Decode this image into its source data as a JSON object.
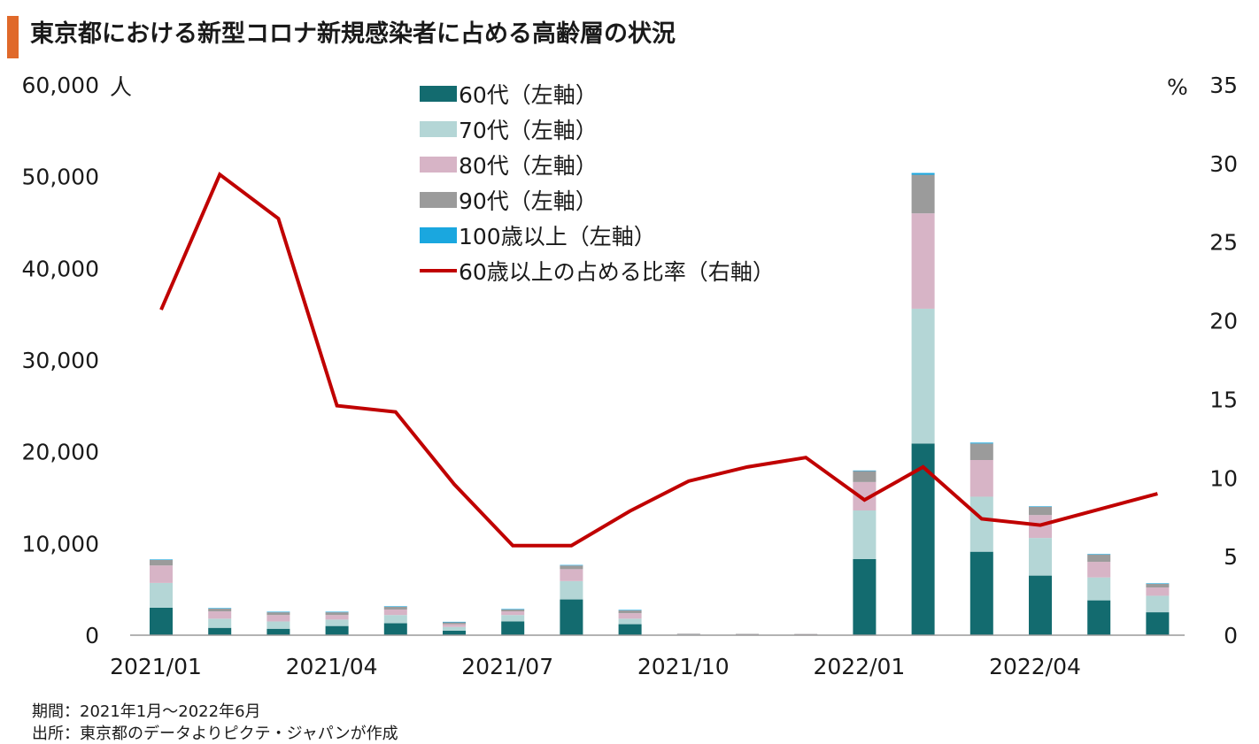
{
  "title": "東京都における新型コロナ新規感染者に占める高齢層の状況",
  "footer": {
    "period": "期間：2021年1月～2022年6月",
    "source": "出所：東京都のデータよりピクテ・ジャパンが作成"
  },
  "colors": {
    "title_accent": "#e0692a",
    "s60": "#136b6f",
    "s70": "#b4d6d6",
    "s80": "#d7b4c6",
    "s90": "#9b9b9b",
    "s100": "#1aa7df",
    "ratio": "#c00000"
  },
  "chart_data": {
    "type": "bar",
    "stacked": true,
    "categories": [
      "2021/01",
      "2021/02",
      "2021/03",
      "2021/04",
      "2021/05",
      "2021/06",
      "2021/07",
      "2021/08",
      "2021/09",
      "2021/10",
      "2021/11",
      "2021/12",
      "2022/01",
      "2022/02",
      "2022/03",
      "2022/04",
      "2022/05",
      "2022/06"
    ],
    "x_tick_labels": [
      "2021/01",
      "2021/04",
      "2021/07",
      "2021/10",
      "2022/01",
      "2022/04"
    ],
    "x_tick_index": [
      0,
      3,
      6,
      9,
      12,
      15
    ],
    "left_axis": {
      "unit": "人",
      "ylim": [
        0,
        60000
      ],
      "ticks": [
        "0",
        "10,000",
        "20,000",
        "30,000",
        "40,000",
        "50,000",
        "60,000"
      ],
      "values": [
        0,
        10000,
        20000,
        30000,
        40000,
        50000,
        60000
      ]
    },
    "right_axis": {
      "unit": "%",
      "ylim": [
        0,
        35
      ],
      "ticks": [
        "0",
        "5",
        "10",
        "15",
        "20",
        "25",
        "30",
        "35"
      ],
      "values": [
        0,
        5,
        10,
        15,
        20,
        25,
        30,
        35
      ]
    },
    "series": [
      {
        "name": "60代（左軸）",
        "color_key": "s60",
        "axis": "left",
        "values": [
          3000,
          800,
          700,
          1000,
          1300,
          500,
          1500,
          3900,
          1200,
          50,
          40,
          30,
          8300,
          20900,
          9100,
          6500,
          3800,
          2500
        ]
      },
      {
        "name": "70代（左軸）",
        "color_key": "s70",
        "axis": "left",
        "values": [
          2700,
          1000,
          800,
          700,
          900,
          400,
          700,
          2000,
          600,
          30,
          20,
          20,
          5300,
          14700,
          6000,
          4100,
          2500,
          1800
        ]
      },
      {
        "name": "80代（左軸）",
        "color_key": "s80",
        "axis": "left",
        "values": [
          1900,
          800,
          700,
          500,
          600,
          300,
          400,
          1300,
          600,
          20,
          20,
          20,
          3100,
          10400,
          4000,
          2500,
          1700,
          900
        ]
      },
      {
        "name": "90代（左軸）",
        "color_key": "s90",
        "axis": "left",
        "values": [
          600,
          300,
          300,
          300,
          300,
          200,
          200,
          400,
          300,
          10,
          10,
          10,
          1200,
          4200,
          1800,
          900,
          800,
          400
        ]
      },
      {
        "name": "100歳以上（左軸）",
        "color_key": "s100",
        "axis": "left",
        "values": [
          30,
          15,
          15,
          10,
          10,
          5,
          10,
          20,
          15,
          0,
          0,
          0,
          60,
          200,
          100,
          50,
          40,
          20
        ]
      },
      {
        "name": "60歳以上の占める比率（右軸）",
        "color_key": "ratio",
        "axis": "right",
        "type": "line",
        "values": [
          20.7,
          29.3,
          26.5,
          14.6,
          14.2,
          9.6,
          5.7,
          5.7,
          7.9,
          9.8,
          10.7,
          11.3,
          8.6,
          10.7,
          7.4,
          7.0,
          8.0,
          9.0
        ]
      }
    ]
  }
}
